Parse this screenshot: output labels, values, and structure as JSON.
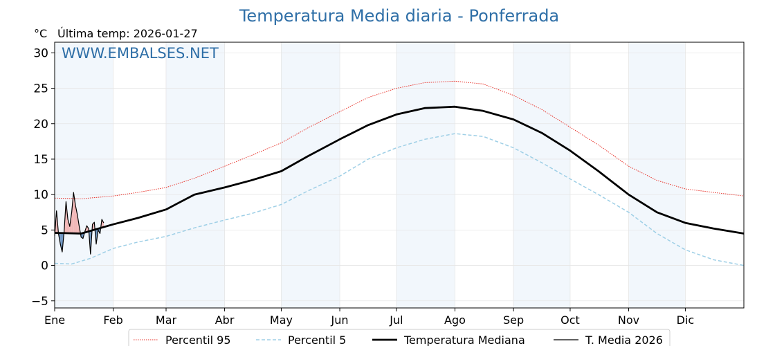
{
  "chart_data": {
    "type": "line",
    "title": "Temperatura Media diaria - Ponferrada",
    "unit_label": "°C",
    "subtitle": "Última temp: 2026-01-27",
    "watermark": "WWW.EMBALSES.NET",
    "ylim": [
      -6,
      31.5
    ],
    "yticks": [
      -5,
      0,
      5,
      10,
      15,
      20,
      25,
      30
    ],
    "ytick_labels": [
      "−5",
      "0",
      "5",
      "10",
      "15",
      "20",
      "25",
      "30"
    ],
    "xlim": [
      1,
      366
    ],
    "grid": true,
    "legend_position": "bottom-center",
    "months": [
      {
        "label": "Ene",
        "start_day": 1
      },
      {
        "label": "Feb",
        "start_day": 32
      },
      {
        "label": "Mar",
        "start_day": 60
      },
      {
        "label": "Abr",
        "start_day": 91
      },
      {
        "label": "May",
        "start_day": 121
      },
      {
        "label": "Jun",
        "start_day": 152
      },
      {
        "label": "Jul",
        "start_day": 182
      },
      {
        "label": "Ago",
        "start_day": 213
      },
      {
        "label": "Sep",
        "start_day": 244
      },
      {
        "label": "Oct",
        "start_day": 274
      },
      {
        "label": "Nov",
        "start_day": 305
      },
      {
        "label": "Dic",
        "start_day": 335
      }
    ],
    "series": [
      {
        "name": "Percentil 95",
        "color": "#e8322a",
        "style": "dotted",
        "x_day": [
          1,
          15,
          32,
          45,
          60,
          75,
          91,
          105,
          121,
          135,
          152,
          167,
          182,
          197,
          213,
          228,
          244,
          259,
          274,
          289,
          305,
          320,
          335,
          350,
          366
        ],
        "values": [
          9.5,
          9.4,
          9.8,
          10.3,
          11.0,
          12.3,
          14.0,
          15.5,
          17.3,
          19.4,
          21.7,
          23.7,
          25.0,
          25.8,
          26.0,
          25.6,
          24.0,
          22.0,
          19.5,
          17.0,
          14.0,
          12.0,
          10.8,
          10.3,
          9.8
        ]
      },
      {
        "name": "Percentil 5",
        "color": "#9ecfe6",
        "style": "dashed",
        "x_day": [
          1,
          10,
          20,
          32,
          45,
          60,
          75,
          91,
          105,
          121,
          135,
          152,
          167,
          182,
          197,
          213,
          228,
          244,
          259,
          274,
          289,
          305,
          320,
          335,
          350,
          366
        ],
        "values": [
          0.3,
          0.2,
          1.0,
          2.4,
          3.3,
          4.1,
          5.3,
          6.4,
          7.3,
          8.6,
          10.5,
          12.6,
          15.0,
          16.6,
          17.8,
          18.6,
          18.2,
          16.6,
          14.5,
          12.2,
          10.0,
          7.5,
          4.5,
          2.2,
          0.8,
          0.0
        ]
      },
      {
        "name": "Temperatura Mediana",
        "color": "#000000",
        "style": "solid-thick",
        "x_day": [
          1,
          15,
          32,
          45,
          60,
          75,
          91,
          105,
          121,
          135,
          152,
          167,
          182,
          197,
          213,
          228,
          244,
          259,
          274,
          289,
          305,
          320,
          335,
          350,
          366
        ],
        "values": [
          4.6,
          4.5,
          5.8,
          6.7,
          7.9,
          10.0,
          11.0,
          12.0,
          13.3,
          15.4,
          17.8,
          19.8,
          21.3,
          22.2,
          22.4,
          21.8,
          20.6,
          18.7,
          16.2,
          13.3,
          10.0,
          7.5,
          6.0,
          5.2,
          4.5
        ]
      },
      {
        "name": "T. Media 2026",
        "color": "#000000",
        "style": "solid-thin",
        "x_day": [
          1,
          2,
          3,
          4,
          5,
          6,
          7,
          8,
          9,
          10,
          11,
          12,
          13,
          14,
          15,
          16,
          17,
          18,
          19,
          20,
          21,
          22,
          23,
          24,
          25,
          26,
          27
        ],
        "values": [
          4.2,
          7.7,
          4.5,
          3.0,
          1.9,
          4.7,
          9.0,
          6.5,
          5.5,
          7.5,
          10.3,
          8.5,
          7.2,
          5.5,
          4.0,
          3.8,
          4.8,
          5.6,
          5.2,
          1.6,
          5.8,
          6.1,
          3.0,
          5.0,
          4.5,
          6.5,
          6.0
        ]
      }
    ]
  }
}
